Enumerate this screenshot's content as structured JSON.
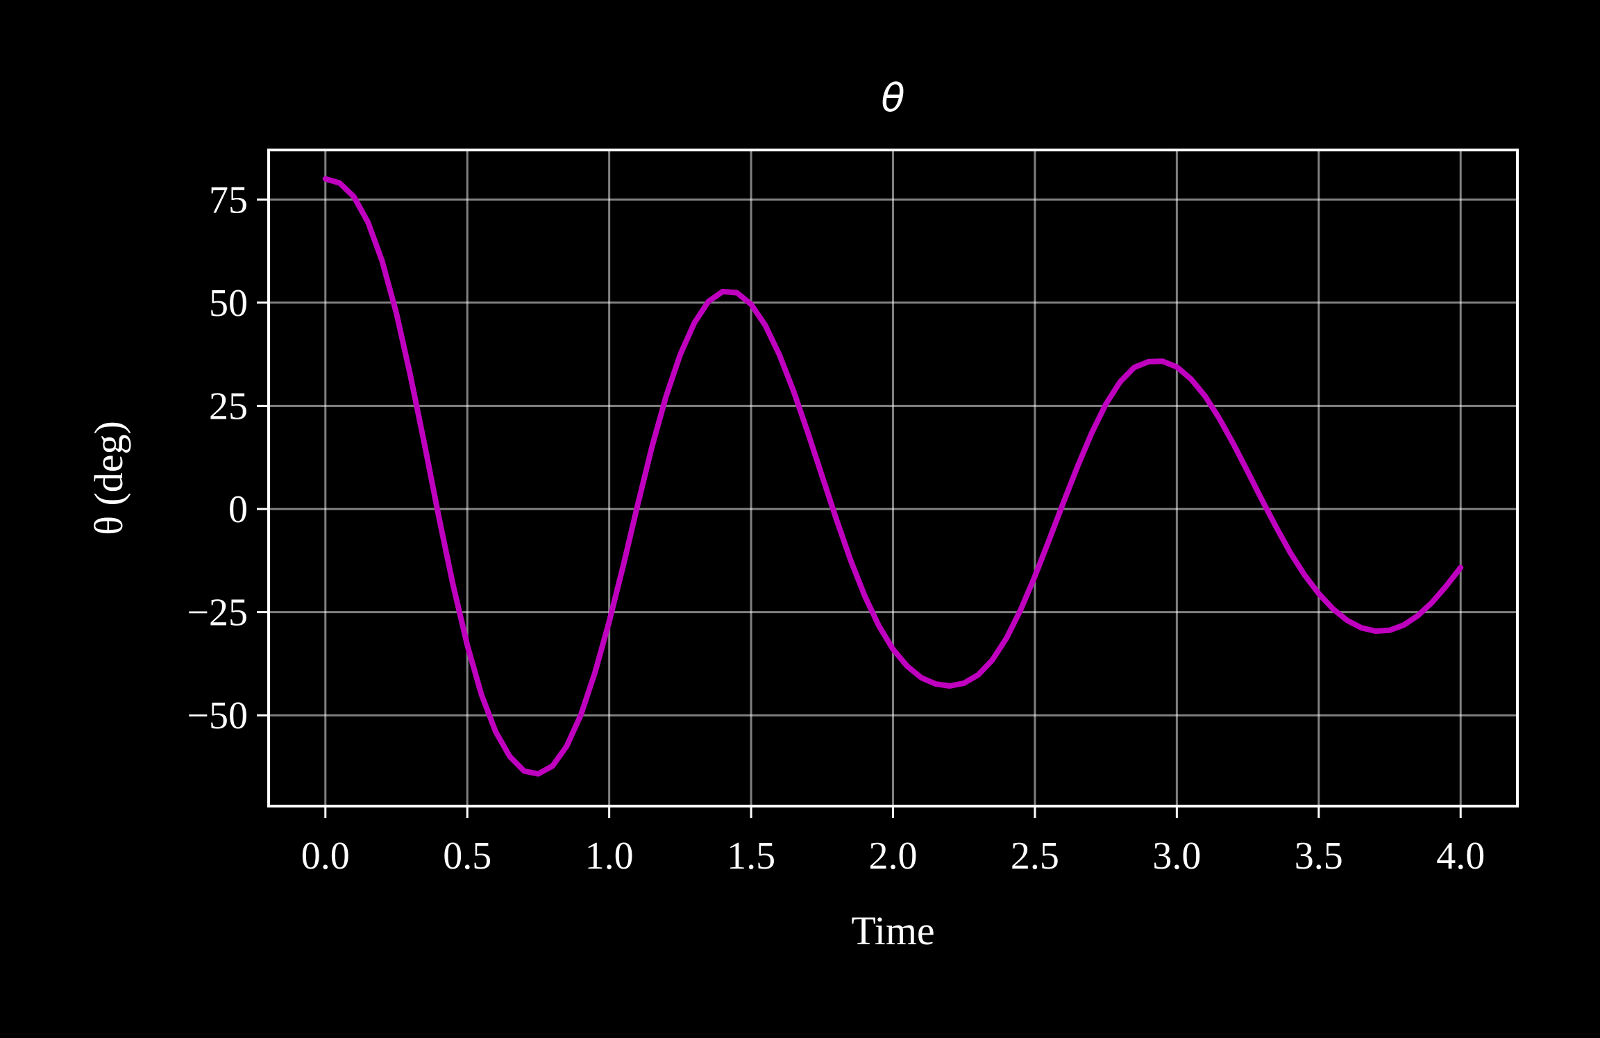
{
  "chart_data": {
    "type": "line",
    "title": "θ",
    "xlabel": "Time",
    "ylabel": "θ (deg)",
    "xlim": [
      -0.2,
      4.2
    ],
    "ylim": [
      -72,
      87
    ],
    "xticks": [
      0.0,
      0.5,
      1.0,
      1.5,
      2.0,
      2.5,
      3.0,
      3.5,
      4.0
    ],
    "xtick_labels": [
      "0.0",
      "0.5",
      "1.0",
      "1.5",
      "2.0",
      "2.5",
      "3.0",
      "3.5",
      "4.0"
    ],
    "yticks": [
      75,
      50,
      25,
      0,
      -25,
      -50
    ],
    "ytick_labels": [
      "75",
      "50",
      "25",
      "0",
      "−25",
      "−50"
    ],
    "grid": true,
    "series": [
      {
        "color": "#bf00bf",
        "x": [
          0.0,
          0.05,
          0.1,
          0.15,
          0.2,
          0.25,
          0.3,
          0.35,
          0.4,
          0.45,
          0.5,
          0.55,
          0.6,
          0.65,
          0.7,
          0.75,
          0.8,
          0.85,
          0.9,
          0.95,
          1.0,
          1.05,
          1.1,
          1.15,
          1.2,
          1.25,
          1.3,
          1.35,
          1.4,
          1.45,
          1.5,
          1.55,
          1.6,
          1.65,
          1.7,
          1.75,
          1.8,
          1.85,
          1.9,
          1.95,
          2.0,
          2.05,
          2.1,
          2.15,
          2.2,
          2.25,
          2.3,
          2.35,
          2.4,
          2.45,
          2.5,
          2.55,
          2.6,
          2.65,
          2.7,
          2.75,
          2.8,
          2.85,
          2.9,
          2.95,
          3.0,
          3.05,
          3.1,
          3.15,
          3.2,
          3.25,
          3.3,
          3.35,
          3.4,
          3.45,
          3.5,
          3.55,
          3.6,
          3.65,
          3.7,
          3.75,
          3.8,
          3.85,
          3.9,
          3.95,
          4.0
        ],
        "y": [
          80.0,
          79.0,
          75.7,
          69.5,
          60.1,
          47.5,
          32.2,
          15.4,
          -2.0,
          -18.5,
          -33.0,
          -45.0,
          -54.0,
          -60.0,
          -63.5,
          -64.2,
          -62.3,
          -57.5,
          -49.9,
          -39.6,
          -27.3,
          -13.6,
          0.9,
          14.9,
          27.2,
          37.4,
          45.1,
          50.3,
          52.7,
          52.4,
          49.6,
          44.5,
          37.3,
          28.5,
          18.5,
          8.0,
          -2.4,
          -12.3,
          -21.0,
          -28.3,
          -34.0,
          -38.1,
          -40.9,
          -42.4,
          -42.9,
          -42.2,
          -40.2,
          -36.6,
          -31.3,
          -24.4,
          -16.3,
          -7.5,
          1.5,
          10.3,
          18.4,
          25.4,
          30.8,
          34.3,
          35.7,
          35.8,
          34.4,
          31.5,
          27.3,
          21.9,
          15.7,
          9.0,
          2.2,
          -4.4,
          -10.6,
          -16.0,
          -20.5,
          -24.2,
          -27.0,
          -28.8,
          -29.6,
          -29.4,
          -28.1,
          -25.8,
          -22.6,
          -18.6,
          -14.2
        ]
      }
    ]
  }
}
